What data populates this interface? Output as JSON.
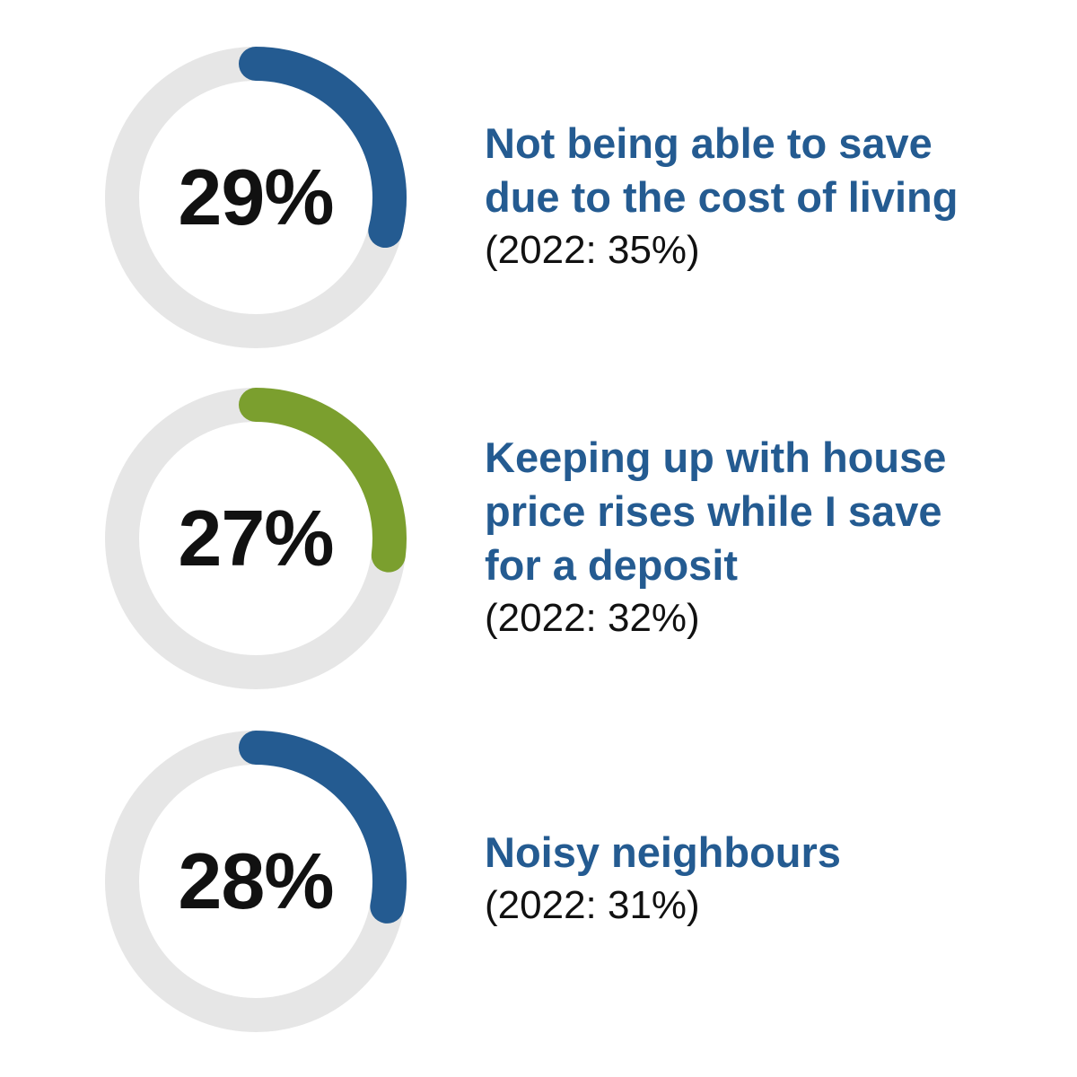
{
  "chart_data": {
    "type": "pie",
    "items": [
      {
        "value": 29,
        "label": "29%",
        "title": "Not being able to save\ndue to the cost of living",
        "previous": "(2022: 35%)",
        "color": "#245b91"
      },
      {
        "value": 27,
        "label": "27%",
        "title": "Keeping up with house\nprice rises while I save\nfor a deposit",
        "previous": "(2022: 32%)",
        "color": "#7b9f2e"
      },
      {
        "value": 28,
        "label": "28%",
        "title": "Noisy neighbours",
        "previous": "(2022: 31%)",
        "color": "#245b91"
      }
    ],
    "track_color": "#e6e6e6"
  }
}
